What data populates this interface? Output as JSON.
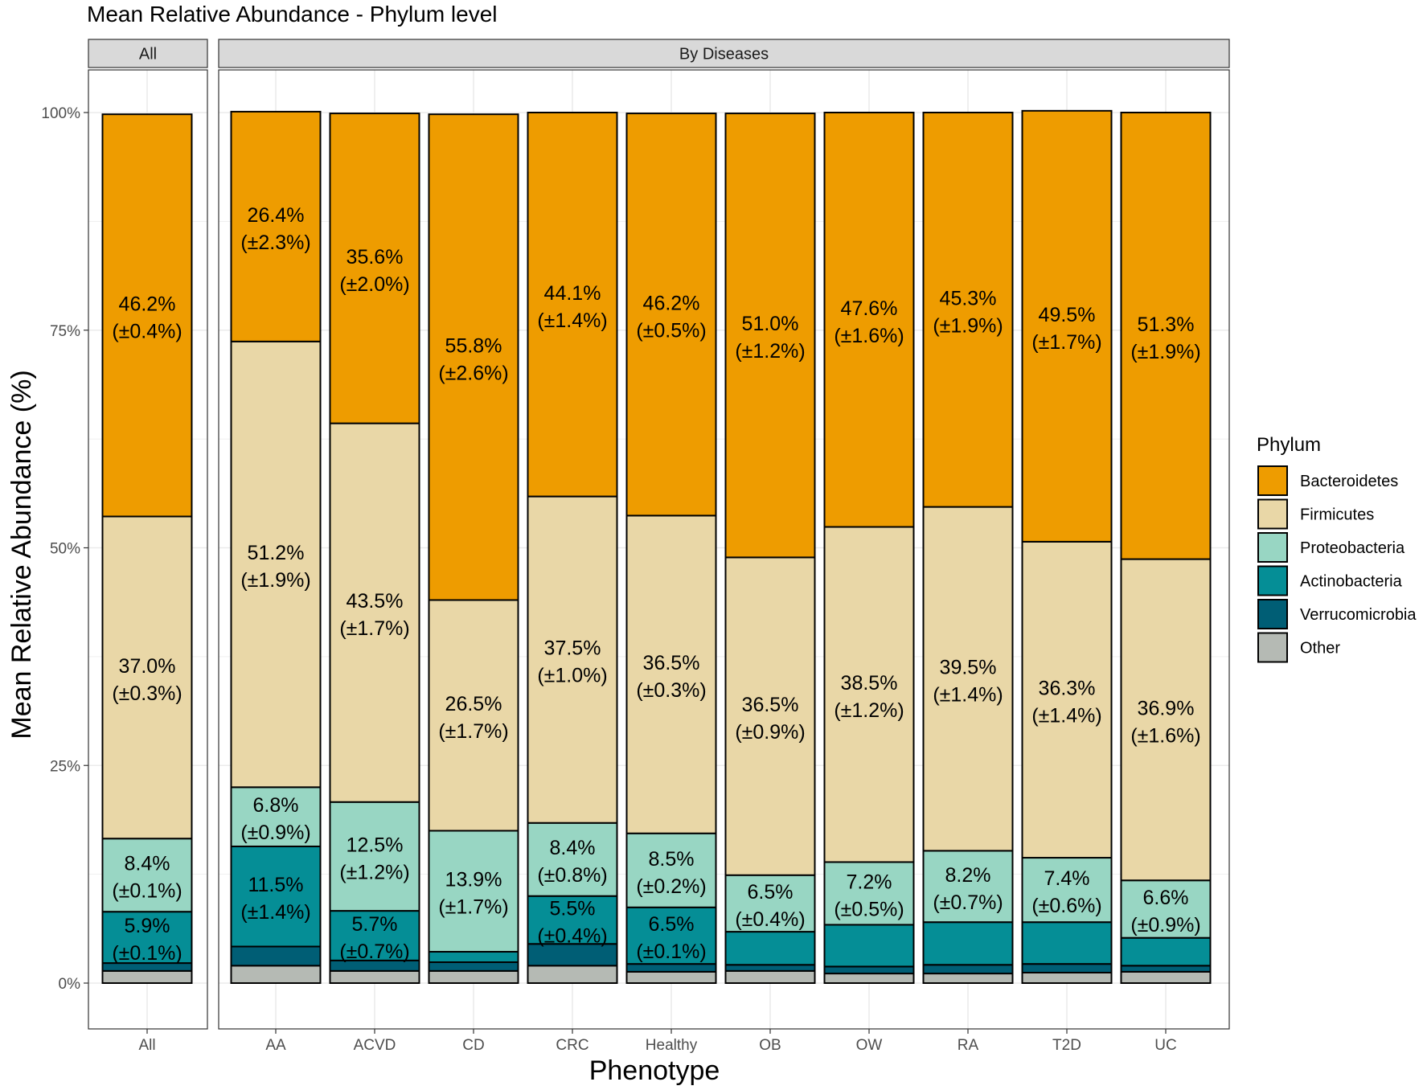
{
  "chart_data": {
    "type": "bar",
    "stacked": true,
    "title": "Mean Relative Abundance - Phylum level",
    "xlabel": "Phenotype",
    "ylabel": "Mean Relative Abundance (%)",
    "ylim": [
      0,
      100
    ],
    "y_ticks": [
      "0%",
      "25%",
      "50%",
      "75%",
      "100%"
    ],
    "y_tick_values": [
      0,
      25,
      50,
      75,
      100
    ],
    "grid": true,
    "legend_position": "right",
    "legend_title": "Phylum",
    "facets": [
      {
        "label": "All",
        "categories": [
          "All"
        ]
      },
      {
        "label": "By Diseases",
        "categories": [
          "AA",
          "ACVD",
          "CD",
          "CRC",
          "Healthy",
          "OB",
          "OW",
          "RA",
          "T2D",
          "UC"
        ]
      }
    ],
    "categories": [
      "All",
      "AA",
      "ACVD",
      "CD",
      "CRC",
      "Healthy",
      "OB",
      "OW",
      "RA",
      "T2D",
      "UC"
    ],
    "series": [
      {
        "name": "Other",
        "color": "#b5bab4",
        "values": [
          1.4,
          2.0,
          1.4,
          1.4,
          2.0,
          1.3,
          1.4,
          1.1,
          1.1,
          1.2,
          1.3
        ],
        "labels": null
      },
      {
        "name": "Verrucomicrobia",
        "color": "#005e75",
        "values": [
          0.9,
          2.2,
          1.2,
          1.0,
          2.5,
          0.9,
          0.7,
          0.8,
          1.0,
          1.0,
          0.7
        ],
        "labels": null
      },
      {
        "name": "Actinobacteria",
        "color": "#058e96",
        "values": [
          5.9,
          11.5,
          5.7,
          1.2,
          5.5,
          6.5,
          3.8,
          4.8,
          4.9,
          4.8,
          3.2
        ],
        "labels": [
          "5.9%|(±0.1%)",
          "11.5%|(±1.4%)",
          "5.7%|(±0.7%)",
          null,
          "5.5%|(±0.4%)",
          "6.5%|(±0.1%)",
          null,
          null,
          null,
          null,
          null
        ]
      },
      {
        "name": "Proteobacteria",
        "color": "#98d6c3",
        "values": [
          8.4,
          6.8,
          12.5,
          13.9,
          8.4,
          8.5,
          6.5,
          7.2,
          8.2,
          7.4,
          6.6
        ],
        "labels": [
          "8.4%|(±0.1%)",
          "6.8%|(±0.9%)",
          "12.5%|(±1.2%)",
          "13.9%|(±1.7%)",
          "8.4%|(±0.8%)",
          "8.5%|(±0.2%)",
          "6.5%|(±0.4%)",
          "7.2%|(±0.5%)",
          "8.2%|(±0.7%)",
          "7.4%|(±0.6%)",
          "6.6%|(±0.9%)"
        ]
      },
      {
        "name": "Firmicutes",
        "color": "#e9d7a7",
        "values": [
          37.0,
          51.2,
          43.5,
          26.5,
          37.5,
          36.5,
          36.5,
          38.5,
          39.5,
          36.3,
          36.9
        ],
        "labels": [
          "37.0%|(±0.3%)",
          "51.2%|(±1.9%)",
          "43.5%|(±1.7%)",
          "26.5%|(±1.7%)",
          "37.5%|(±1.0%)",
          "36.5%|(±0.3%)",
          "36.5%|(±0.9%)",
          "38.5%|(±1.2%)",
          "39.5%|(±1.4%)",
          "36.3%|(±1.4%)",
          "36.9%|(±1.6%)"
        ]
      },
      {
        "name": "Bacteroidetes",
        "color": "#ee9c00",
        "values": [
          46.2,
          26.4,
          35.6,
          55.8,
          44.1,
          46.2,
          51.0,
          47.6,
          45.3,
          49.5,
          51.3
        ],
        "labels": [
          "46.2%|(±0.4%)",
          "26.4%|(±2.3%)",
          "35.6%|(±2.0%)",
          "55.8%|(±2.6%)",
          "44.1%|(±1.4%)",
          "46.2%|(±0.5%)",
          "51.0%|(±1.2%)",
          "47.6%|(±1.6%)",
          "45.3%|(±1.9%)",
          "49.5%|(±1.7%)",
          "51.3%|(±1.9%)"
        ]
      }
    ],
    "legend_order": [
      "Bacteroidetes",
      "Firmicutes",
      "Proteobacteria",
      "Actinobacteria",
      "Verrucomicrobia",
      "Other"
    ]
  }
}
